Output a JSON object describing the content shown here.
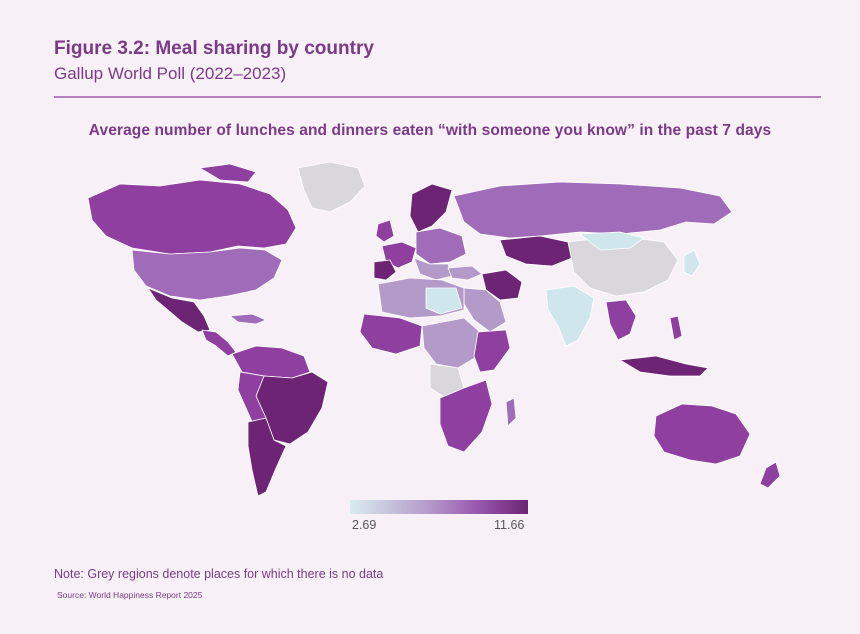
{
  "figure": {
    "title": "Figure 3.2: Meal sharing by country",
    "subtitle": "Gallup World Poll (2022–2023)"
  },
  "map": {
    "title": "Average number of lunches and dinners eaten “with someone you know” in the past 7 days",
    "no_data_color": "#d9d7db",
    "colors": {
      "low": "#cfe6ec",
      "mid_low": "#b49ac8",
      "mid": "#a06bb8",
      "high": "#8e3f9f",
      "top": "#6d2474"
    }
  },
  "legend": {
    "min_label": "2.69",
    "max_label": "11.66"
  },
  "note": "Note: Grey regions denote places for which there is no data",
  "source": "Source: World Happiness Report 2025"
}
